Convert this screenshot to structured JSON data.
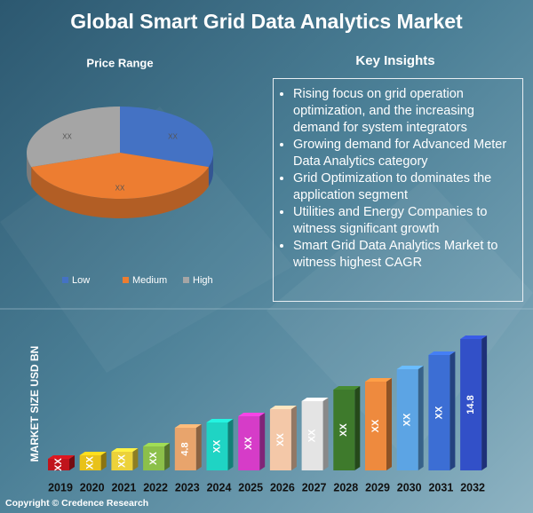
{
  "title": "Global Smart Grid Data Analytics Market",
  "chart_data": [
    {
      "type": "pie",
      "title": "Price Range",
      "categories": [
        "Low",
        "Medium",
        "High"
      ],
      "values": [
        30,
        40,
        30
      ],
      "value_labels": [
        "XX",
        "XX",
        "XX"
      ],
      "colors": [
        "#4472c4",
        "#ed7d31",
        "#a5a5a5"
      ],
      "legend": "bottom"
    },
    {
      "type": "bar",
      "y_label": "MARKET SIZE USD BN",
      "categories": [
        "2019",
        "2020",
        "2021",
        "2022",
        "2023",
        "2024",
        "2025",
        "2026",
        "2027",
        "2028",
        "2029",
        "2030",
        "2031",
        "2032"
      ],
      "values": [
        1.3,
        1.7,
        2.1,
        2.7,
        4.8,
        5.4,
        6.1,
        6.9,
        7.8,
        9.1,
        10.0,
        11.4,
        13.0,
        14.8
      ],
      "value_labels": [
        "XX",
        "XX",
        "XX",
        "XX",
        "4.8",
        "XX",
        "XX",
        "XX",
        "XX",
        "XX",
        "XX",
        "XX",
        "XX",
        "14.8"
      ],
      "colors": [
        "#c0141c",
        "#e8c21a",
        "#ecd23a",
        "#8cc04a",
        "#e8a46c",
        "#1fd4c4",
        "#d63cc8",
        "#f4c8a8",
        "#e4e4e4",
        "#3e7a2c",
        "#ee8a3e",
        "#5ca4e4",
        "#3c6ed4",
        "#3250c8"
      ]
    }
  ],
  "insights": {
    "title": "Key Insights",
    "items": [
      "Rising focus on grid operation optimization, and the increasing demand for system integrators",
      "Growing demand for Advanced Meter Data Analytics category",
      "Grid Optimization to dominates the application segment",
      "Utilities and Energy Companies to witness significant growth",
      "Smart Grid Data Analytics Market to witness highest CAGR"
    ]
  },
  "footer": "Copyright © Credence Research"
}
